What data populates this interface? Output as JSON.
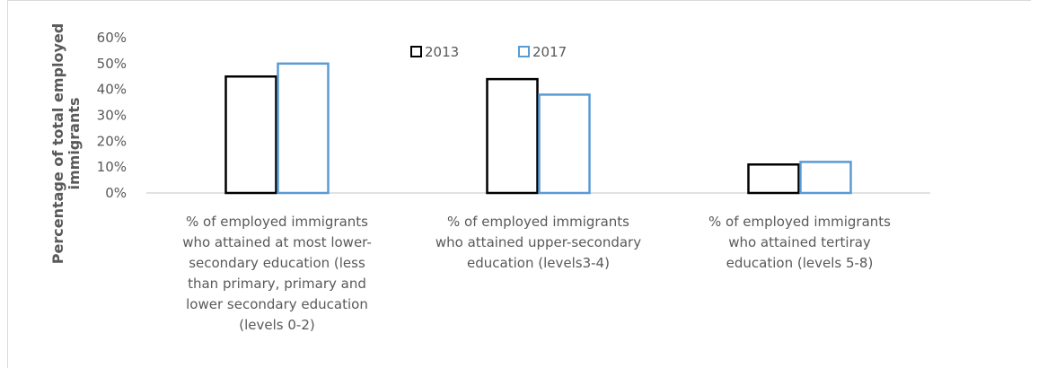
{
  "chart_data": {
    "type": "bar",
    "title": "",
    "xlabel": "",
    "ylabel": "Percentage  of total employed immigrants",
    "ylabel_lines": [
      "Percentage  of total employed",
      "immigrants"
    ],
    "ylim": [
      0,
      0.6
    ],
    "yticks": [
      "0%",
      "10%",
      "20%",
      "30%",
      "40%",
      "50%",
      "60%"
    ],
    "grid": false,
    "legend_position": "top",
    "categories": [
      "% of employed immigrants who attained at most lower-secondary education  (less than primary, primary and lower secondary education (levels 0-2)",
      "% of employed immigrants who attained upper-secondary education  (levels3-4)",
      "% of employed immigrants who attained tertiray education (levels 5-8)"
    ],
    "category_lines": [
      [
        "% of employed immigrants",
        "who attained at most lower-",
        "secondary education  (less",
        "than primary, primary and",
        "lower secondary education",
        "(levels 0-2)"
      ],
      [
        "% of employed immigrants",
        "who attained upper-secondary",
        "education  (levels3-4)"
      ],
      [
        "% of employed immigrants",
        "who attained tertiray",
        "education (levels 5-8)"
      ]
    ],
    "series": [
      {
        "name": "2013",
        "values": [
          0.45,
          0.44,
          0.11
        ],
        "color": "#000000"
      },
      {
        "name": "2017",
        "values": [
          0.5,
          0.38,
          0.12
        ],
        "color": "#5b9bd5"
      }
    ],
    "axis_color": "#d9d9d9",
    "text_color": "#595959"
  }
}
